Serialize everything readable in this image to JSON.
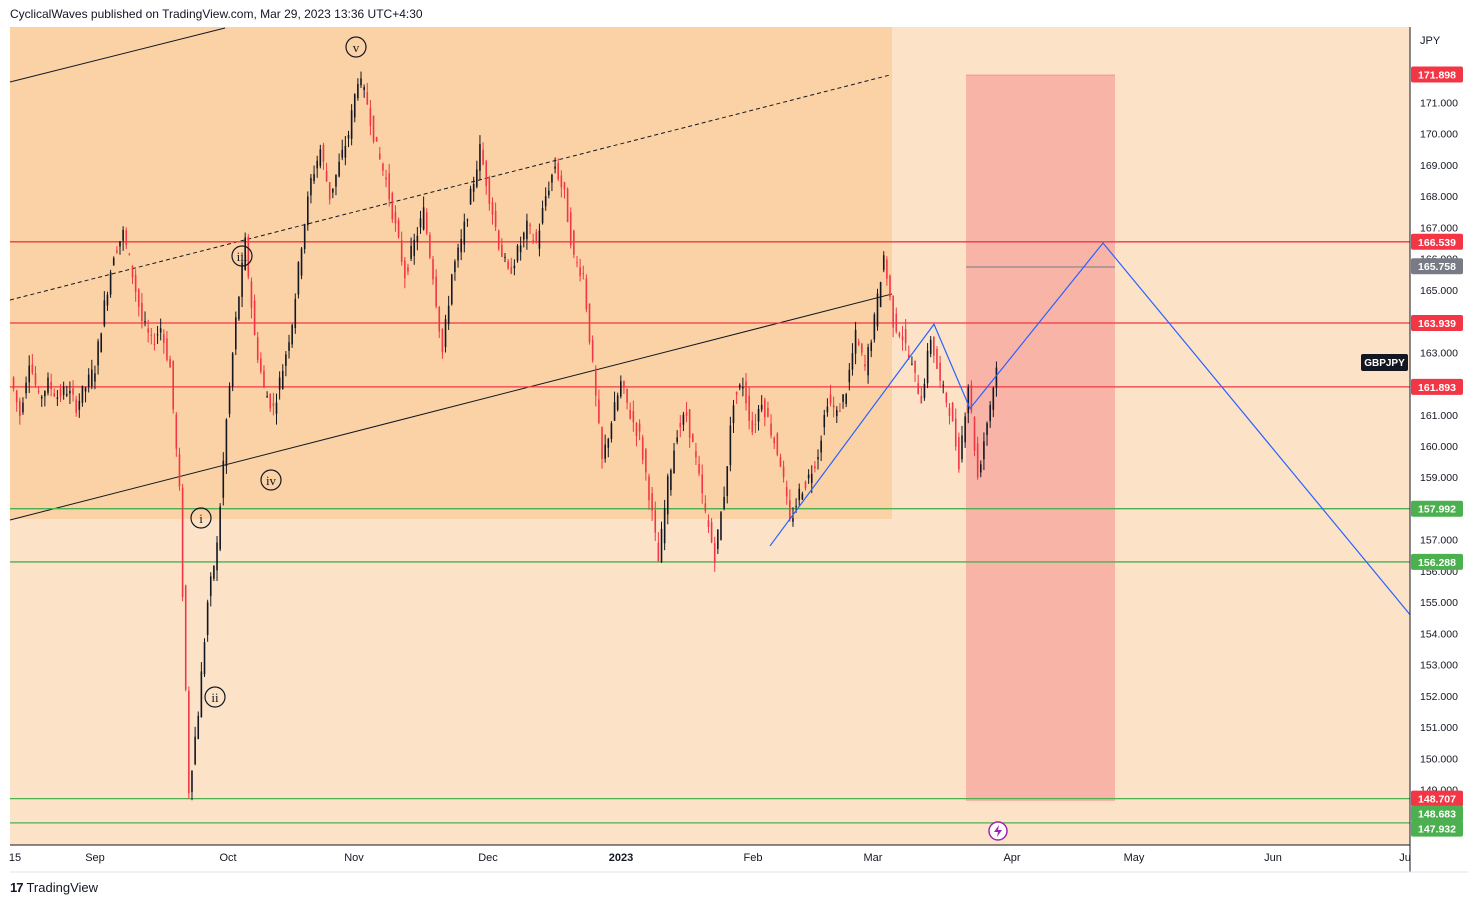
{
  "header": {
    "publish_line": "CyclicalWaves published on TradingView.com, Mar 29, 2023 13:36 UTC+4:30"
  },
  "footer": {
    "brand": "TradingView",
    "logo_icon": "tradingview-logo-icon"
  },
  "colors": {
    "background": "#fce3c7",
    "highlight_zone": "#fbd2a5",
    "red_zone": "#f7a7a0",
    "red_line": "#f23645",
    "green_line": "#4caf50",
    "blue_line": "#2962ff",
    "candle_up": "#131722",
    "candle_down": "#f23645",
    "axis_text": "#131722"
  },
  "chart_data": {
    "type": "line",
    "symbol": "GBPJPY",
    "currency": "JPY",
    "y_axis": {
      "range": [
        148.2,
        172.6
      ],
      "ticks": [
        "149.000",
        "150.000",
        "151.000",
        "152.000",
        "153.000",
        "154.000",
        "155.000",
        "156.000",
        "157.000",
        "158.000",
        "159.000",
        "160.000",
        "161.000",
        "162.000",
        "163.000",
        "164.000",
        "165.000",
        "166.000",
        "167.000",
        "168.000",
        "169.000",
        "170.000",
        "171.000"
      ],
      "labels": [
        {
          "text": "171.898",
          "value": 171.898,
          "kind": "red"
        },
        {
          "text": "166.539",
          "value": 166.539,
          "kind": "red"
        },
        {
          "text": "165.758",
          "value": 165.758,
          "kind": "gray"
        },
        {
          "text": "163.939",
          "value": 163.939,
          "kind": "red"
        },
        {
          "text": "161.893",
          "value": 161.893,
          "kind": "red"
        },
        {
          "text": "157.992",
          "value": 157.992,
          "kind": "green"
        },
        {
          "text": "156.288",
          "value": 156.288,
          "kind": "green"
        },
        {
          "text": "148.707",
          "value": 148.707,
          "kind": "red"
        },
        {
          "text": "148.683",
          "value": 148.683,
          "kind": "green"
        },
        {
          "text": "147.932",
          "value": 147.932,
          "kind": "green"
        }
      ]
    },
    "x_axis": {
      "ticks": [
        {
          "text": "15",
          "bold": false
        },
        {
          "text": "Sep",
          "bold": false
        },
        {
          "text": "Oct",
          "bold": false
        },
        {
          "text": "Nov",
          "bold": false
        },
        {
          "text": "Dec",
          "bold": false
        },
        {
          "text": "2023",
          "bold": true
        },
        {
          "text": "Feb",
          "bold": false
        },
        {
          "text": "Mar",
          "bold": false
        },
        {
          "text": "Apr",
          "bold": false
        },
        {
          "text": "May",
          "bold": false
        },
        {
          "text": "Jun",
          "bold": false
        },
        {
          "text": "Ju",
          "bold": false
        }
      ]
    },
    "horizontal_levels": [
      {
        "value": 166.539,
        "kind": "red"
      },
      {
        "value": 163.939,
        "kind": "red"
      },
      {
        "value": 161.893,
        "kind": "red"
      },
      {
        "value": 157.992,
        "kind": "green"
      },
      {
        "value": 156.288,
        "kind": "green"
      },
      {
        "value": 148.707,
        "kind": "green"
      },
      {
        "value": 147.932,
        "kind": "green"
      }
    ],
    "wave_labels": [
      "v",
      "iii",
      "iv",
      "i",
      "ii"
    ],
    "series": [
      {
        "values": [
          162.2,
          161.0,
          162.8,
          161.5,
          162.0,
          161.6,
          161.8,
          161.3,
          161.9,
          162.5,
          164.5,
          166.2,
          166.8,
          165.5,
          164.0,
          163.3,
          163.8,
          162.5,
          158.5,
          149.0,
          151.5,
          155.0,
          156.8,
          160.8,
          164.0,
          166.5,
          163.5,
          161.8,
          161.2,
          162.5,
          164.0,
          166.5,
          168.5,
          169.5,
          168.0,
          169.0,
          170.0,
          171.8,
          171.0,
          169.5,
          168.5,
          167.0,
          165.5,
          166.5,
          167.5,
          165.5,
          163.0,
          165.5,
          166.5,
          168.0,
          169.5,
          168.0,
          166.5,
          165.5,
          166.2,
          167.0,
          166.5,
          168.0,
          169.0,
          168.0,
          166.0,
          165.5,
          162.5,
          159.5,
          160.8,
          162.0,
          161.0,
          160.3,
          158.5,
          156.3,
          158.8,
          160.5,
          161.0,
          159.5,
          157.8,
          156.5,
          158.5,
          161.5,
          162.0,
          160.5,
          161.5,
          160.5,
          159.5,
          157.5,
          158.5,
          159.0,
          159.8,
          161.5,
          161.0,
          161.8,
          163.5,
          162.5,
          164.0,
          166.1,
          164.0,
          163.5,
          162.5,
          161.5,
          163.5,
          162.0,
          161.2,
          159.5,
          162.0,
          159.0,
          160.8,
          162.5
        ]
      }
    ],
    "projection_path": [
      {
        "x": "Feb 2",
        "y": 156.8
      },
      {
        "x": "Mar 15",
        "y": 163.9
      },
      {
        "x": "Mar 22",
        "y": 161.2
      },
      {
        "x": "Apr 24",
        "y": 166.5
      },
      {
        "x": "Jun 10",
        "y": 154.6
      }
    ]
  }
}
